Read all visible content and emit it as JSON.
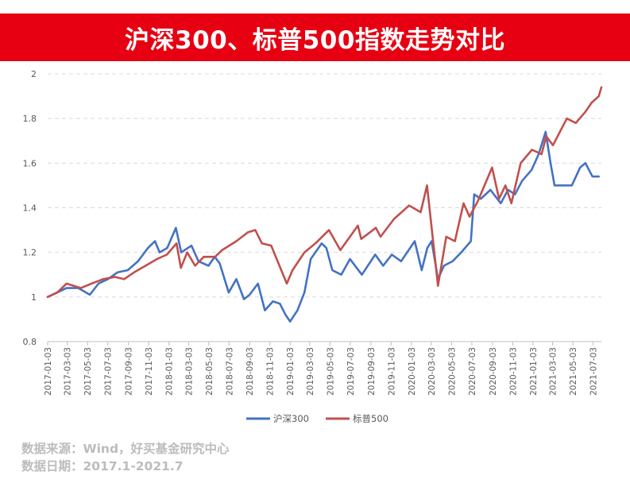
{
  "banner": {
    "title": "沪深300、标普500指数走势对比"
  },
  "source": {
    "line1": "数据来源：Wind，好买基金研究中心",
    "line2": "数据日期：2017.1-2021.7"
  },
  "colors": {
    "banner_bg": "#e60012",
    "series1": "#4472c4",
    "series2": "#c0504d",
    "grid": "#d9d9d9",
    "axis_text": "#595959"
  },
  "chart_data": {
    "type": "line",
    "ylim": [
      0.8,
      2.0
    ],
    "yticks": [
      "0.8",
      "1",
      "1.2",
      "1.4",
      "1.6",
      "1.8",
      "2"
    ],
    "xticks": [
      "2017-01-03",
      "2017-03-03",
      "2017-05-03",
      "2017-07-03",
      "2017-09-03",
      "2017-11-03",
      "2018-01-03",
      "2018-03-03",
      "2018-05-03",
      "2018-07-03",
      "2018-09-03",
      "2018-11-03",
      "2019-01-03",
      "2019-03-03",
      "2019-05-03",
      "2019-07-03",
      "2019-09-03",
      "2019-11-03",
      "2020-01-03",
      "2020-03-03",
      "2020-05-03",
      "2020-07-03",
      "2020-09-03",
      "2020-11-03",
      "2021-01-03",
      "2021-03-03",
      "2021-05-03",
      "2021-07-03"
    ],
    "grid": "horizontal dashed",
    "legend_position": "bottom",
    "series": [
      {
        "name": "沪深300",
        "color": "#4472c4",
        "points": [
          [
            "2017-01-03",
            1.0
          ],
          [
            "2017-02-01",
            1.02
          ],
          [
            "2017-03-01",
            1.04
          ],
          [
            "2017-04-05",
            1.04
          ],
          [
            "2017-05-10",
            1.01
          ],
          [
            "2017-06-05",
            1.06
          ],
          [
            "2017-07-03",
            1.08
          ],
          [
            "2017-08-01",
            1.11
          ],
          [
            "2017-09-01",
            1.12
          ],
          [
            "2017-10-02",
            1.16
          ],
          [
            "2017-11-01",
            1.22
          ],
          [
            "2017-11-22",
            1.25
          ],
          [
            "2017-12-06",
            1.2
          ],
          [
            "2017-12-29",
            1.22
          ],
          [
            "2018-01-24",
            1.31
          ],
          [
            "2018-02-09",
            1.2
          ],
          [
            "2018-03-12",
            1.23
          ],
          [
            "2018-04-02",
            1.16
          ],
          [
            "2018-05-02",
            1.14
          ],
          [
            "2018-05-21",
            1.18
          ],
          [
            "2018-06-05",
            1.15
          ],
          [
            "2018-07-02",
            1.02
          ],
          [
            "2018-07-25",
            1.08
          ],
          [
            "2018-08-17",
            0.99
          ],
          [
            "2018-09-03",
            1.01
          ],
          [
            "2018-09-28",
            1.06
          ],
          [
            "2018-10-19",
            0.94
          ],
          [
            "2018-11-12",
            0.98
          ],
          [
            "2018-12-03",
            0.97
          ],
          [
            "2018-12-20",
            0.92
          ],
          [
            "2019-01-03",
            0.89
          ],
          [
            "2019-01-25",
            0.94
          ],
          [
            "2019-02-15",
            1.02
          ],
          [
            "2019-03-06",
            1.17
          ],
          [
            "2019-04-08",
            1.24
          ],
          [
            "2019-04-22",
            1.22
          ],
          [
            "2019-05-10",
            1.12
          ],
          [
            "2019-06-06",
            1.1
          ],
          [
            "2019-07-02",
            1.17
          ],
          [
            "2019-08-07",
            1.1
          ],
          [
            "2019-09-16",
            1.19
          ],
          [
            "2019-10-10",
            1.14
          ],
          [
            "2019-11-05",
            1.19
          ],
          [
            "2019-12-03",
            1.16
          ],
          [
            "2020-01-13",
            1.25
          ],
          [
            "2020-02-03",
            1.12
          ],
          [
            "2020-02-20",
            1.22
          ],
          [
            "2020-03-04",
            1.25
          ],
          [
            "2020-03-23",
            1.08
          ],
          [
            "2020-04-10",
            1.14
          ],
          [
            "2020-05-06",
            1.16
          ],
          [
            "2020-06-01",
            1.2
          ],
          [
            "2020-06-30",
            1.25
          ],
          [
            "2020-07-10",
            1.46
          ],
          [
            "2020-07-30",
            1.44
          ],
          [
            "2020-08-28",
            1.48
          ],
          [
            "2020-09-28",
            1.42
          ],
          [
            "2020-10-20",
            1.48
          ],
          [
            "2020-11-10",
            1.46
          ],
          [
            "2020-12-01",
            1.52
          ],
          [
            "2020-12-30",
            1.57
          ],
          [
            "2021-01-20",
            1.64
          ],
          [
            "2021-02-10",
            1.74
          ],
          [
            "2021-02-25",
            1.6
          ],
          [
            "2021-03-09",
            1.5
          ],
          [
            "2021-04-05",
            1.5
          ],
          [
            "2021-04-30",
            1.5
          ],
          [
            "2021-05-25",
            1.58
          ],
          [
            "2021-06-10",
            1.6
          ],
          [
            "2021-07-01",
            1.54
          ],
          [
            "2021-07-20",
            1.54
          ]
        ]
      },
      {
        "name": "标普500",
        "color": "#c0504d",
        "points": [
          [
            "2017-01-03",
            1.0
          ],
          [
            "2017-02-01",
            1.02
          ],
          [
            "2017-03-01",
            1.06
          ],
          [
            "2017-04-13",
            1.04
          ],
          [
            "2017-05-15",
            1.06
          ],
          [
            "2017-06-19",
            1.08
          ],
          [
            "2017-07-25",
            1.09
          ],
          [
            "2017-08-21",
            1.08
          ],
          [
            "2017-09-20",
            1.11
          ],
          [
            "2017-10-25",
            1.14
          ],
          [
            "2017-11-28",
            1.17
          ],
          [
            "2017-12-28",
            1.19
          ],
          [
            "2018-01-26",
            1.24
          ],
          [
            "2018-02-08",
            1.13
          ],
          [
            "2018-02-27",
            1.2
          ],
          [
            "2018-03-23",
            1.14
          ],
          [
            "2018-04-18",
            1.18
          ],
          [
            "2018-05-22",
            1.18
          ],
          [
            "2018-06-12",
            1.21
          ],
          [
            "2018-07-25",
            1.25
          ],
          [
            "2018-08-29",
            1.29
          ],
          [
            "2018-09-20",
            1.3
          ],
          [
            "2018-10-10",
            1.24
          ],
          [
            "2018-11-07",
            1.23
          ],
          [
            "2018-12-24",
            1.06
          ],
          [
            "2019-01-10",
            1.12
          ],
          [
            "2019-02-15",
            1.2
          ],
          [
            "2019-03-20",
            1.24
          ],
          [
            "2019-04-30",
            1.3
          ],
          [
            "2019-06-03",
            1.21
          ],
          [
            "2019-07-26",
            1.32
          ],
          [
            "2019-08-05",
            1.26
          ],
          [
            "2019-09-18",
            1.31
          ],
          [
            "2019-10-02",
            1.27
          ],
          [
            "2019-11-12",
            1.35
          ],
          [
            "2019-12-27",
            1.41
          ],
          [
            "2020-01-31",
            1.38
          ],
          [
            "2020-02-19",
            1.5
          ],
          [
            "2020-03-23",
            1.05
          ],
          [
            "2020-04-17",
            1.27
          ],
          [
            "2020-05-13",
            1.25
          ],
          [
            "2020-06-08",
            1.42
          ],
          [
            "2020-06-26",
            1.36
          ],
          [
            "2020-07-21",
            1.43
          ],
          [
            "2020-09-02",
            1.58
          ],
          [
            "2020-09-23",
            1.44
          ],
          [
            "2020-10-12",
            1.5
          ],
          [
            "2020-10-30",
            1.42
          ],
          [
            "2020-11-27",
            1.6
          ],
          [
            "2020-12-31",
            1.66
          ],
          [
            "2021-01-29",
            1.64
          ],
          [
            "2021-02-12",
            1.72
          ],
          [
            "2021-03-04",
            1.68
          ],
          [
            "2021-04-15",
            1.8
          ],
          [
            "2021-05-12",
            1.78
          ],
          [
            "2021-06-10",
            1.83
          ],
          [
            "2021-06-28",
            1.87
          ],
          [
            "2021-07-20",
            1.9
          ],
          [
            "2021-07-28",
            1.94
          ]
        ]
      }
    ]
  }
}
